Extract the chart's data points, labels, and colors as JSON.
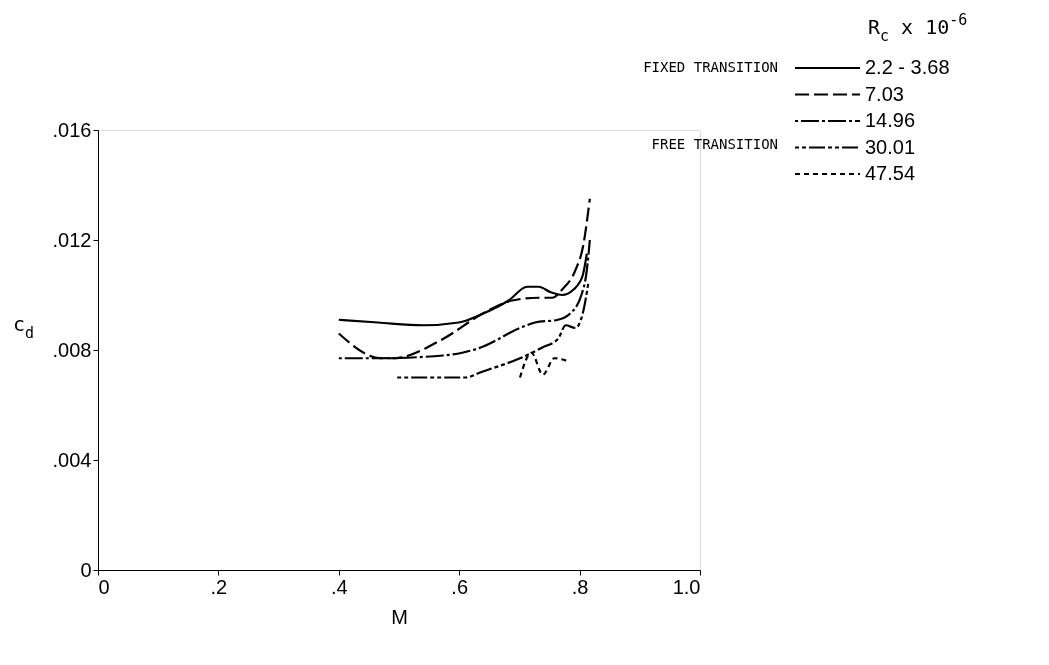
{
  "chart_data": {
    "type": "line",
    "xlabel": "M",
    "ylabel": "c$_{d}$",
    "legend_title": "R$_{c}$ x 10$^{-6}$",
    "xlim": [
      0,
      1.0
    ],
    "ylim": [
      0,
      0.016
    ],
    "xticks": [
      0,
      {
        "value": 0.2,
        "label": ".2"
      },
      {
        "value": 0.4,
        "label": ".4"
      },
      {
        "value": 0.6,
        "label": ".6"
      },
      {
        "value": 0.8,
        "label": ".8"
      },
      {
        "value": 1.0,
        "label": "1.0"
      }
    ],
    "yticks": [
      0,
      {
        "value": 0.004,
        "label": ".004"
      },
      {
        "value": 0.008,
        "label": ".008"
      },
      {
        "value": 0.012,
        "label": ".012"
      },
      {
        "value": 0.016,
        "label": ".016"
      }
    ],
    "grid": false,
    "legend": "top right",
    "annotations": [
      "FIXED TRANSITION",
      "FREE TRANSITION"
    ],
    "series": [
      {
        "name": "2.2 - 3.68",
        "color": "#000000",
        "line_style": "solid",
        "x": [
          0.4,
          0.465,
          0.541,
          0.599,
          0.637,
          0.682,
          0.713,
          0.732,
          0.752,
          0.771,
          0.79,
          0.805,
          0.812
        ],
        "values": [
          0.0091,
          0.009,
          0.0089,
          0.009,
          0.0093,
          0.0098,
          0.0103,
          0.0103,
          0.0101,
          0.01,
          0.0102,
          0.0107,
          0.0115
        ]
      },
      {
        "name": "7.03",
        "color": "#000000",
        "line_style": "dashed",
        "x": [
          0.4,
          0.47,
          0.49,
          0.573,
          0.637,
          0.688,
          0.732,
          0.755,
          0.771,
          0.793,
          0.806,
          0.817
        ],
        "values": [
          0.0086,
          0.0077,
          0.0077,
          0.0084,
          0.0093,
          0.0098,
          0.0099,
          0.0099,
          0.0102,
          0.0109,
          0.0118,
          0.0135
        ]
      },
      {
        "name": "14.96",
        "color": "#000000",
        "line_style": "dashdot",
        "x": [
          0.4,
          0.465,
          0.573,
          0.605,
          0.637,
          0.701,
          0.726,
          0.764,
          0.783,
          0.803,
          0.812,
          0.817
        ],
        "values": [
          0.0077,
          0.0077,
          0.0078,
          0.0079,
          0.0081,
          0.0088,
          0.009,
          0.0091,
          0.0093,
          0.01,
          0.0109,
          0.012
        ]
      },
      {
        "name": "30.01",
        "color": "#000000",
        "line_style": "dashdotdot",
        "x": [
          0.497,
          0.611,
          0.637,
          0.701,
          0.739,
          0.764,
          0.777,
          0.793,
          0.806,
          0.815
        ],
        "values": [
          0.007,
          0.007,
          0.0072,
          0.0077,
          0.0081,
          0.0084,
          0.0089,
          0.0088,
          0.0094,
          0.0105
        ]
      },
      {
        "name": "47.54",
        "color": "#000000",
        "line_style": "dotted",
        "x": [
          0.701,
          0.72,
          0.739,
          0.758,
          0.78
        ],
        "values": [
          0.007,
          0.0079,
          0.0071,
          0.0077,
          0.0076
        ]
      }
    ]
  }
}
